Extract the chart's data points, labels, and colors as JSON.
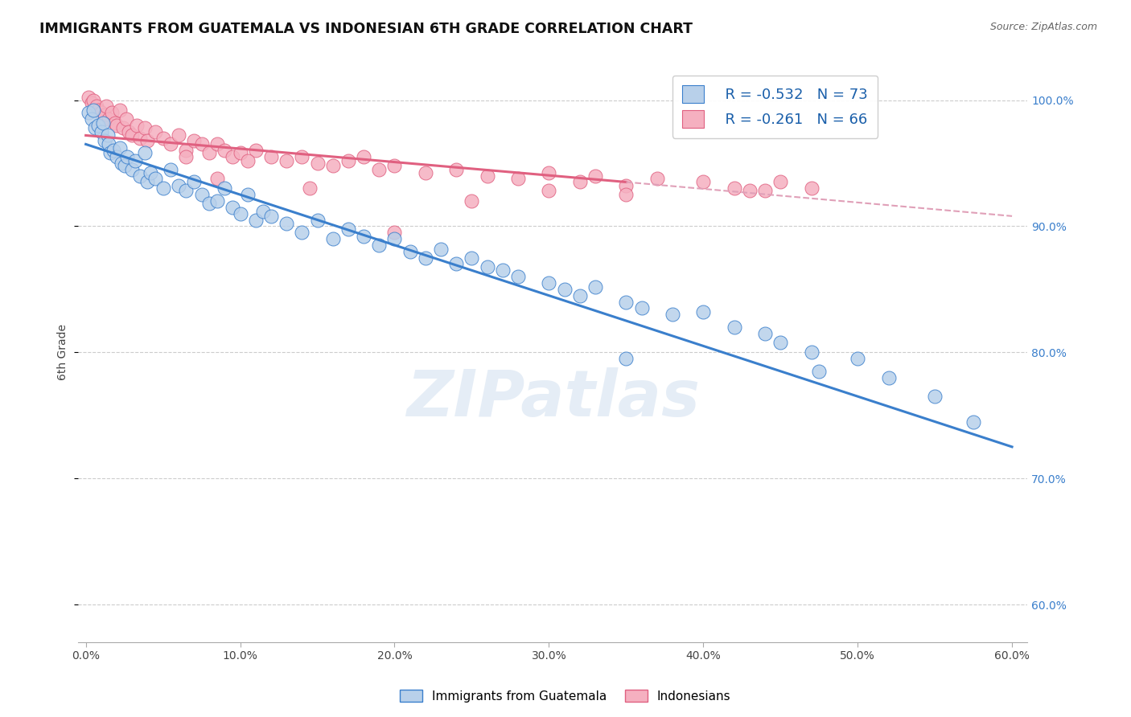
{
  "title": "IMMIGRANTS FROM GUATEMALA VS INDONESIAN 6TH GRADE CORRELATION CHART",
  "source": "Source: ZipAtlas.com",
  "ylabel": "6th Grade",
  "x_tick_labels": [
    "0.0%",
    "10.0%",
    "20.0%",
    "30.0%",
    "40.0%",
    "50.0%",
    "60.0%"
  ],
  "x_tick_values": [
    0,
    10,
    20,
    30,
    40,
    50,
    60
  ],
  "y_right_labels": [
    "100.0%",
    "90.0%",
    "80.0%",
    "70.0%",
    "60.0%"
  ],
  "y_right_values": [
    100,
    90,
    80,
    70,
    60
  ],
  "xlim": [
    -0.5,
    61
  ],
  "ylim": [
    57,
    103
  ],
  "blue_R": "-0.532",
  "blue_N": "73",
  "pink_R": "-0.261",
  "pink_N": "66",
  "blue_color": "#b8d0ea",
  "pink_color": "#f5b0c0",
  "blue_line_color": "#3a7fcc",
  "pink_line_color": "#e06080",
  "pink_dash_color": "#e0a0b8",
  "watermark": "ZIPatlas",
  "legend_label_blue": "Immigrants from Guatemala",
  "legend_label_pink": "Indonesians",
  "blue_line_x0": 0,
  "blue_line_y0": 96.5,
  "blue_line_x1": 60,
  "blue_line_y1": 72.5,
  "pink_line_x0": 0,
  "pink_line_y0": 97.2,
  "pink_line_x1": 35,
  "pink_line_y1": 93.5,
  "pink_dash_x0": 35,
  "pink_dash_y0": 93.5,
  "pink_dash_x1": 60,
  "pink_dash_y1": 90.8,
  "blue_scatter_x": [
    0.2,
    0.4,
    0.5,
    0.6,
    0.8,
    1.0,
    1.1,
    1.2,
    1.4,
    1.5,
    1.6,
    1.8,
    2.0,
    2.2,
    2.3,
    2.5,
    2.7,
    3.0,
    3.2,
    3.5,
    3.8,
    4.0,
    4.2,
    4.5,
    5.0,
    5.5,
    6.0,
    6.5,
    7.0,
    7.5,
    8.0,
    8.5,
    9.0,
    9.5,
    10.0,
    10.5,
    11.0,
    11.5,
    12.0,
    13.0,
    14.0,
    15.0,
    16.0,
    17.0,
    18.0,
    19.0,
    20.0,
    21.0,
    22.0,
    23.0,
    24.0,
    25.0,
    26.0,
    27.0,
    28.0,
    30.0,
    31.0,
    32.0,
    33.0,
    35.0,
    36.0,
    38.0,
    40.0,
    42.0,
    44.0,
    45.0,
    47.0,
    50.0,
    52.0,
    55.0,
    57.5,
    35.0,
    47.5
  ],
  "blue_scatter_y": [
    99.0,
    98.5,
    99.2,
    97.8,
    98.0,
    97.5,
    98.2,
    96.8,
    97.2,
    96.5,
    95.8,
    96.0,
    95.5,
    96.2,
    95.0,
    94.8,
    95.5,
    94.5,
    95.2,
    94.0,
    95.8,
    93.5,
    94.2,
    93.8,
    93.0,
    94.5,
    93.2,
    92.8,
    93.5,
    92.5,
    91.8,
    92.0,
    93.0,
    91.5,
    91.0,
    92.5,
    90.5,
    91.2,
    90.8,
    90.2,
    89.5,
    90.5,
    89.0,
    89.8,
    89.2,
    88.5,
    89.0,
    88.0,
    87.5,
    88.2,
    87.0,
    87.5,
    86.8,
    86.5,
    86.0,
    85.5,
    85.0,
    84.5,
    85.2,
    84.0,
    83.5,
    83.0,
    83.2,
    82.0,
    81.5,
    80.8,
    80.0,
    79.5,
    78.0,
    76.5,
    74.5,
    79.5,
    78.5
  ],
  "pink_scatter_x": [
    0.2,
    0.4,
    0.5,
    0.7,
    0.8,
    1.0,
    1.2,
    1.3,
    1.5,
    1.7,
    1.9,
    2.0,
    2.2,
    2.4,
    2.6,
    2.8,
    3.0,
    3.3,
    3.5,
    3.8,
    4.0,
    4.5,
    5.0,
    5.5,
    6.0,
    6.5,
    7.0,
    7.5,
    8.0,
    8.5,
    9.0,
    9.5,
    10.0,
    11.0,
    12.0,
    13.0,
    14.0,
    15.0,
    16.0,
    17.0,
    18.0,
    19.0,
    20.0,
    22.0,
    24.0,
    26.0,
    28.0,
    30.0,
    32.0,
    33.0,
    35.0,
    37.0,
    40.0,
    42.0,
    44.0,
    45.0,
    47.0,
    35.0,
    43.0,
    20.0,
    25.0,
    30.0,
    14.5,
    10.5,
    8.5,
    6.5
  ],
  "pink_scatter_y": [
    100.2,
    99.8,
    100.0,
    99.5,
    99.2,
    99.0,
    98.8,
    99.5,
    98.5,
    99.0,
    98.2,
    98.0,
    99.2,
    97.8,
    98.5,
    97.5,
    97.2,
    98.0,
    97.0,
    97.8,
    96.8,
    97.5,
    97.0,
    96.5,
    97.2,
    96.0,
    96.8,
    96.5,
    95.8,
    96.5,
    96.0,
    95.5,
    95.8,
    96.0,
    95.5,
    95.2,
    95.5,
    95.0,
    94.8,
    95.2,
    95.5,
    94.5,
    94.8,
    94.2,
    94.5,
    94.0,
    93.8,
    94.2,
    93.5,
    94.0,
    93.2,
    93.8,
    93.5,
    93.0,
    92.8,
    93.5,
    93.0,
    92.5,
    92.8,
    89.5,
    92.0,
    92.8,
    93.0,
    95.2,
    93.8,
    95.5
  ]
}
